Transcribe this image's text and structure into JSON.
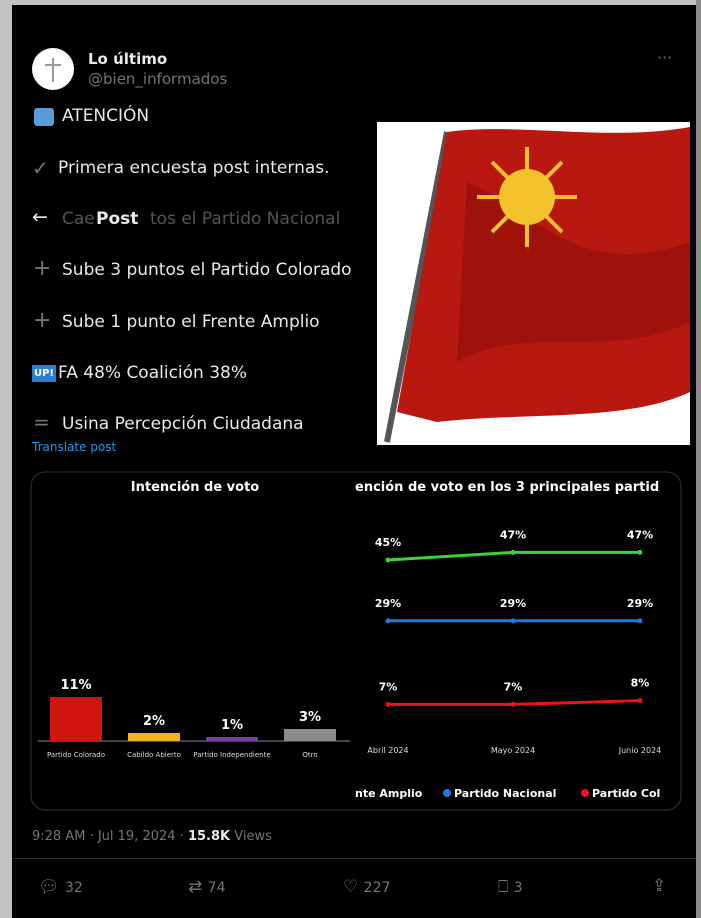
{
  "header": {
    "name": "Lo último",
    "handle": "@bien_informados",
    "more": "···",
    "nav_title": "Post"
  },
  "tweet": {
    "lines": [
      "ATENCIÓN",
      "Primera encuesta post internas.",
      "Cae",
      "tos el Partido Nacional",
      "Sube 3 puntos el Partido Colorado",
      "Sube 1 punto el Frente Amplio",
      "FA 48% Coalición 38%",
      "Usina Percepción Ciudadana"
    ],
    "badge": "UP!",
    "translate": "Translate post"
  },
  "image": {
    "bar_chart": {
      "title": "Intención de voto",
      "categories": [
        "Partido Colorado",
        "Cabildo Abierto",
        "Partido Independiente",
        "Otro"
      ],
      "values": [
        11,
        2,
        1,
        3
      ],
      "value_labels": [
        "11%",
        "2%",
        "1%",
        "3%"
      ],
      "colors": [
        "#d0140e",
        "#f2b51c",
        "#7b3fa8",
        "#8c8c8c"
      ]
    },
    "line_chart": {
      "title": "ención de voto en los 3 principales partid",
      "x": [
        "Abril 2024",
        "Mayo 2024",
        "Junio 2024"
      ],
      "series": [
        {
          "name": "nte Amplio",
          "color": "#3fd13a",
          "values": [
            45,
            47,
            47
          ],
          "value_labels": [
            "45%",
            "47%",
            "47%"
          ]
        },
        {
          "name": "Partido Nacional",
          "color": "#1a7be0",
          "values": [
            29,
            29,
            29
          ],
          "value_labels": [
            "29%",
            "29%",
            "29%"
          ]
        },
        {
          "name": "Partido Col",
          "color": "#e8141a",
          "values": [
            7,
            7,
            8
          ],
          "value_labels": [
            "7%",
            "7%",
            "8%"
          ]
        }
      ]
    }
  },
  "meta": {
    "time": "9:28 AM · Jul 19, 2024 · ",
    "views": "15.8K",
    "views_label": " Views"
  },
  "actions": {
    "replies": "32",
    "reposts": "74",
    "likes": "227",
    "bookmarks": "3"
  }
}
